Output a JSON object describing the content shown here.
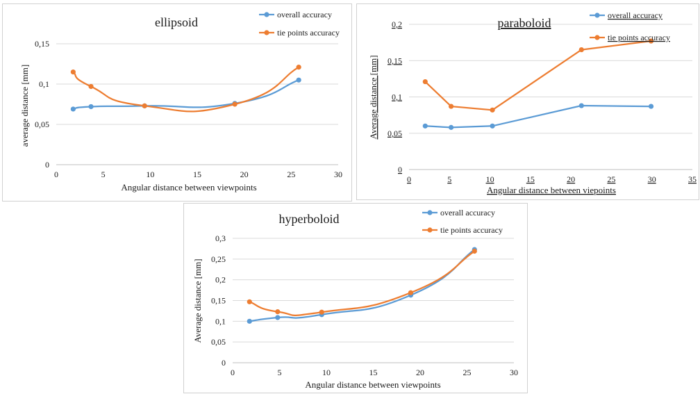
{
  "colors": {
    "series1": "#5b9bd5",
    "series2": "#ed7d31",
    "grid": "#d9d9d9",
    "axis": "#bfbfbf"
  },
  "chart_data": [
    {
      "type": "line",
      "title": "ellipsoid",
      "xlabel": "Angular distance between viewpoints",
      "ylabel": "average distance [mm]",
      "xlim": [
        0,
        30
      ],
      "ylim": [
        0,
        0.15
      ],
      "xticks": [
        0,
        5,
        10,
        15,
        20,
        25,
        30
      ],
      "yticks": [
        0,
        0.05,
        0.1,
        0.15
      ],
      "xtick_labels": [
        "0",
        "5",
        "10",
        "15",
        "20",
        "25",
        "30"
      ],
      "ytick_labels": [
        "0",
        "0,05",
        "0,1",
        "0,15"
      ],
      "grid": true,
      "legend": "top-right",
      "smooth": true,
      "series": [
        {
          "name": "overall accuracy",
          "x": [
            1.8,
            3.7,
            9.4,
            19.0,
            25.8
          ],
          "y": [
            0.069,
            0.072,
            0.073,
            0.076,
            0.105
          ]
        },
        {
          "name": "tie points accuracy",
          "x": [
            1.8,
            3.7,
            9.4,
            19.0,
            25.8
          ],
          "y": [
            0.115,
            0.097,
            0.073,
            0.075,
            0.121
          ]
        }
      ]
    },
    {
      "type": "line",
      "title": "paraboloid",
      "xlabel": "Angular distance between viepoints",
      "ylabel": "Average distance [mm]",
      "xlim": [
        0,
        35
      ],
      "ylim": [
        0,
        0.2
      ],
      "xticks": [
        0,
        5,
        10,
        15,
        20,
        25,
        30,
        35
      ],
      "yticks": [
        0,
        0.05,
        0.1,
        0.15,
        0.2
      ],
      "xtick_labels": [
        "0",
        "5",
        "10",
        "15",
        "20",
        "25",
        "30",
        "35"
      ],
      "ytick_labels": [
        "0",
        "0,05",
        "0,1",
        "0,15",
        "0,2"
      ],
      "grid": true,
      "legend": "top-right",
      "smooth": false,
      "series": [
        {
          "name": "overall accuracy",
          "x": [
            2.0,
            5.2,
            10.3,
            21.3,
            29.9
          ],
          "y": [
            0.06,
            0.058,
            0.06,
            0.088,
            0.087
          ]
        },
        {
          "name": "tie points accuracy",
          "x": [
            2.0,
            5.2,
            10.3,
            21.3,
            29.9
          ],
          "y": [
            0.121,
            0.087,
            0.082,
            0.165,
            0.177
          ]
        }
      ]
    },
    {
      "type": "line",
      "title": "hyperboloid",
      "xlabel": "Angular distance between viewpoints",
      "ylabel": "Average distance [mm]",
      "xlim": [
        0,
        30
      ],
      "ylim": [
        0,
        0.3
      ],
      "xticks": [
        0,
        5,
        10,
        15,
        20,
        25,
        30
      ],
      "yticks": [
        0,
        0.05,
        0.1,
        0.15,
        0.2,
        0.25,
        0.3
      ],
      "xtick_labels": [
        "0",
        "5",
        "10",
        "15",
        "20",
        "25",
        "30"
      ],
      "ytick_labels": [
        "0",
        "0,05",
        "0,1",
        "0,15",
        "0,2",
        "0,25",
        "0,3"
      ],
      "grid": true,
      "legend": "top-right",
      "smooth": true,
      "series": [
        {
          "name": "overall accuracy",
          "x": [
            1.8,
            4.8,
            9.5,
            19.0,
            25.8
          ],
          "y": [
            0.1,
            0.109,
            0.116,
            0.163,
            0.273
          ]
        },
        {
          "name": "tie points accuracy",
          "x": [
            1.8,
            4.8,
            9.5,
            19.0,
            25.8
          ],
          "y": [
            0.147,
            0.123,
            0.122,
            0.169,
            0.269
          ]
        }
      ]
    }
  ]
}
